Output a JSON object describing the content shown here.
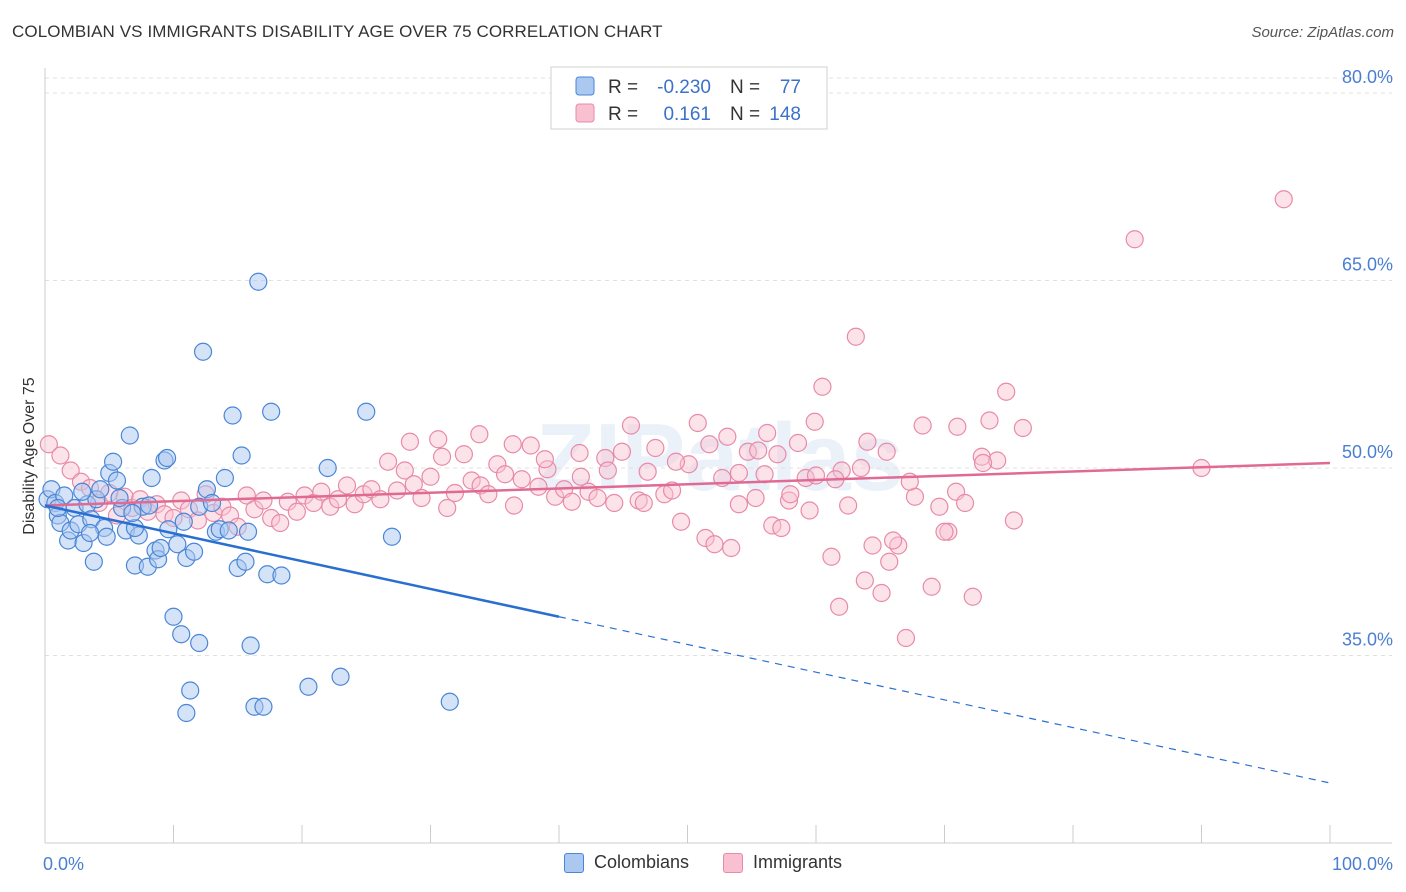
{
  "title": "COLOMBIAN VS IMMIGRANTS DISABILITY AGE OVER 75 CORRELATION CHART",
  "source": "Source: ZipAtlas.com",
  "watermark": "ZIPatlas",
  "colors": {
    "colombians_fill": "#aac8f0",
    "colombians_stroke": "#4a86d6",
    "colombians_line": "#2a6fd0",
    "immigrants_fill": "#f8c0d0",
    "immigrants_stroke": "#e88aa8",
    "immigrants_line": "#e06a94",
    "tick_label": "#4a7fd0",
    "grid": "#e0e0e0"
  },
  "legend_top": {
    "rows": [
      {
        "series": "Colombians",
        "r_label": "R =",
        "r_value": "-0.230",
        "n_label": "N =",
        "n_value": "77"
      },
      {
        "series": "Immigrants",
        "r_label": "R =",
        "r_value": "0.161",
        "n_label": "N =",
        "n_value": "148"
      }
    ]
  },
  "legend_bottom": [
    {
      "label": "Colombians"
    },
    {
      "label": "Immigrants"
    }
  ],
  "chart_data": {
    "type": "scatter",
    "title": "COLOMBIAN VS IMMIGRANTS DISABILITY AGE OVER 75 CORRELATION CHART",
    "xlabel": "",
    "ylabel": "Disability Age Over 75",
    "xlim": [
      0,
      100
    ],
    "ylim": [
      20,
      82
    ],
    "x_tick_labels": [
      "0.0%",
      "100.0%"
    ],
    "y_ticks": [
      35,
      50,
      65,
      80
    ],
    "y_tick_labels": [
      "35.0%",
      "50.0%",
      "65.0%",
      "80.0%"
    ],
    "grid": "horizontal dashed",
    "legend_placement": "top-center and bottom-center",
    "series": [
      {
        "name": "Colombians",
        "r": -0.23,
        "n": 77,
        "trend": {
          "x": [
            0,
            40
          ],
          "y": [
            47.0,
            38.1
          ],
          "dashed_extension": {
            "x": [
              40,
              100
            ],
            "y": [
              38.1,
              24.8
            ]
          }
        },
        "points": [
          [
            0.2,
            47.5
          ],
          [
            0.5,
            48.3
          ],
          [
            0.8,
            47.2
          ],
          [
            1.0,
            46.2
          ],
          [
            1.2,
            45.6
          ],
          [
            1.5,
            47.8
          ],
          [
            1.8,
            44.2
          ],
          [
            2.0,
            45.0
          ],
          [
            2.3,
            46.8
          ],
          [
            2.6,
            45.5
          ],
          [
            3.0,
            44.0
          ],
          [
            3.3,
            47.1
          ],
          [
            3.6,
            45.9
          ],
          [
            3.8,
            42.5
          ],
          [
            4.0,
            47.5
          ],
          [
            4.3,
            48.3
          ],
          [
            4.6,
            45.2
          ],
          [
            5.0,
            49.6
          ],
          [
            5.3,
            50.5
          ],
          [
            5.6,
            49.0
          ],
          [
            6.0,
            46.8
          ],
          [
            6.3,
            45.0
          ],
          [
            6.6,
            52.6
          ],
          [
            7.0,
            42.2
          ],
          [
            7.3,
            44.6
          ],
          [
            7.6,
            46.9
          ],
          [
            8.0,
            42.1
          ],
          [
            8.3,
            49.2
          ],
          [
            8.6,
            43.4
          ],
          [
            8.8,
            42.7
          ],
          [
            9.0,
            43.6
          ],
          [
            9.3,
            50.6
          ],
          [
            9.6,
            45.1
          ],
          [
            10.0,
            38.1
          ],
          [
            10.3,
            43.9
          ],
          [
            10.6,
            36.7
          ],
          [
            11.0,
            42.8
          ],
          [
            11.3,
            32.2
          ],
          [
            11.6,
            43.3
          ],
          [
            12.0,
            46.9
          ],
          [
            12.3,
            59.3
          ],
          [
            12.6,
            48.3
          ],
          [
            13.0,
            47.2
          ],
          [
            13.3,
            44.9
          ],
          [
            13.6,
            45.1
          ],
          [
            14.0,
            49.2
          ],
          [
            14.3,
            45.0
          ],
          [
            14.6,
            54.2
          ],
          [
            15.0,
            42.0
          ],
          [
            15.3,
            51.0
          ],
          [
            15.6,
            42.5
          ],
          [
            16.0,
            35.8
          ],
          [
            16.3,
            30.9
          ],
          [
            16.6,
            64.9
          ],
          [
            17.0,
            30.9
          ],
          [
            17.3,
            41.5
          ],
          [
            17.6,
            54.5
          ],
          [
            12.0,
            36.0
          ],
          [
            7.0,
            45.2
          ],
          [
            1.0,
            46.8
          ],
          [
            3.5,
            44.8
          ],
          [
            5.8,
            47.6
          ],
          [
            2.9,
            48.1
          ],
          [
            18.4,
            41.4
          ],
          [
            20.5,
            32.5
          ],
          [
            22.0,
            50.0
          ],
          [
            23.0,
            33.3
          ],
          [
            25.0,
            54.5
          ],
          [
            27.0,
            44.5
          ],
          [
            31.5,
            31.3
          ],
          [
            9.5,
            50.8
          ],
          [
            11.0,
            30.4
          ],
          [
            4.8,
            44.5
          ],
          [
            6.8,
            46.4
          ],
          [
            8.1,
            47.0
          ],
          [
            10.8,
            45.7
          ],
          [
            15.8,
            44.9
          ]
        ]
      },
      {
        "name": "Immigrants",
        "r": 0.161,
        "n": 148,
        "trend": {
          "x": [
            0,
            100
          ],
          "y": [
            47.0,
            50.4
          ]
        },
        "points": [
          [
            0.3,
            51.9
          ],
          [
            1.2,
            51.0
          ],
          [
            2.0,
            49.8
          ],
          [
            2.8,
            48.9
          ],
          [
            3.5,
            48.4
          ],
          [
            4.2,
            47.2
          ],
          [
            5.0,
            48.0
          ],
          [
            5.6,
            46.2
          ],
          [
            6.2,
            47.7
          ],
          [
            6.8,
            46.8
          ],
          [
            7.4,
            47.5
          ],
          [
            8.0,
            46.5
          ],
          [
            8.7,
            47.1
          ],
          [
            9.3,
            46.3
          ],
          [
            10.0,
            46.0
          ],
          [
            10.6,
            47.4
          ],
          [
            11.2,
            46.7
          ],
          [
            11.9,
            45.8
          ],
          [
            12.5,
            47.9
          ],
          [
            13.1,
            46.4
          ],
          [
            13.8,
            46.9
          ],
          [
            14.4,
            46.2
          ],
          [
            15.0,
            45.3
          ],
          [
            15.7,
            47.8
          ],
          [
            16.3,
            46.7
          ],
          [
            17.0,
            47.4
          ],
          [
            17.6,
            46.0
          ],
          [
            18.3,
            45.6
          ],
          [
            18.9,
            47.3
          ],
          [
            19.6,
            46.5
          ],
          [
            20.2,
            47.8
          ],
          [
            20.9,
            47.2
          ],
          [
            21.5,
            48.1
          ],
          [
            22.2,
            46.9
          ],
          [
            22.8,
            47.5
          ],
          [
            23.5,
            48.6
          ],
          [
            24.1,
            47.1
          ],
          [
            24.8,
            47.9
          ],
          [
            25.4,
            48.3
          ],
          [
            26.1,
            47.5
          ],
          [
            26.7,
            50.5
          ],
          [
            27.4,
            48.2
          ],
          [
            28.0,
            49.8
          ],
          [
            28.7,
            48.7
          ],
          [
            29.3,
            47.6
          ],
          [
            30.0,
            49.3
          ],
          [
            30.6,
            52.3
          ],
          [
            31.3,
            46.8
          ],
          [
            31.9,
            48.0
          ],
          [
            32.6,
            51.1
          ],
          [
            33.2,
            49.0
          ],
          [
            33.9,
            48.6
          ],
          [
            34.5,
            47.9
          ],
          [
            35.2,
            50.3
          ],
          [
            35.8,
            49.5
          ],
          [
            36.5,
            47.0
          ],
          [
            37.1,
            49.1
          ],
          [
            37.8,
            51.8
          ],
          [
            38.4,
            48.5
          ],
          [
            39.1,
            49.9
          ],
          [
            39.7,
            47.7
          ],
          [
            40.4,
            48.3
          ],
          [
            41.0,
            47.3
          ],
          [
            41.7,
            49.3
          ],
          [
            42.3,
            48.1
          ],
          [
            43.0,
            47.6
          ],
          [
            43.6,
            50.8
          ],
          [
            44.3,
            47.2
          ],
          [
            44.9,
            51.3
          ],
          [
            45.6,
            53.4
          ],
          [
            46.2,
            47.4
          ],
          [
            46.9,
            49.7
          ],
          [
            47.5,
            51.6
          ],
          [
            48.2,
            47.9
          ],
          [
            48.8,
            48.2
          ],
          [
            49.5,
            45.7
          ],
          [
            50.1,
            50.3
          ],
          [
            50.8,
            53.6
          ],
          [
            51.4,
            44.4
          ],
          [
            52.1,
            43.9
          ],
          [
            52.7,
            49.2
          ],
          [
            53.4,
            43.6
          ],
          [
            54.0,
            47.1
          ],
          [
            54.7,
            51.3
          ],
          [
            55.3,
            47.6
          ],
          [
            56.0,
            49.5
          ],
          [
            56.6,
            45.4
          ],
          [
            57.3,
            45.2
          ],
          [
            57.9,
            47.4
          ],
          [
            58.6,
            52.0
          ],
          [
            59.2,
            49.2
          ],
          [
            59.9,
            53.7
          ],
          [
            60.5,
            56.5
          ],
          [
            61.2,
            42.9
          ],
          [
            61.8,
            38.9
          ],
          [
            62.5,
            47.0
          ],
          [
            63.1,
            60.5
          ],
          [
            63.8,
            41.0
          ],
          [
            64.4,
            43.8
          ],
          [
            65.1,
            40.0
          ],
          [
            65.7,
            42.5
          ],
          [
            66.4,
            43.8
          ],
          [
            67.0,
            36.4
          ],
          [
            67.7,
            47.7
          ],
          [
            68.3,
            53.4
          ],
          [
            69.0,
            40.5
          ],
          [
            69.6,
            46.9
          ],
          [
            70.3,
            44.9
          ],
          [
            70.9,
            48.1
          ],
          [
            71.6,
            47.2
          ],
          [
            72.2,
            39.7
          ],
          [
            72.9,
            50.9
          ],
          [
            73.5,
            53.8
          ],
          [
            74.1,
            50.6
          ],
          [
            74.8,
            56.1
          ],
          [
            75.4,
            45.8
          ],
          [
            76.1,
            53.2
          ],
          [
            84.8,
            68.3
          ],
          [
            90.0,
            50.0
          ],
          [
            96.4,
            71.5
          ],
          [
            54.0,
            49.6
          ],
          [
            55.5,
            51.4
          ],
          [
            56.2,
            52.8
          ],
          [
            58.0,
            47.9
          ],
          [
            60.0,
            49.4
          ],
          [
            62.0,
            49.8
          ],
          [
            64.0,
            52.1
          ],
          [
            65.5,
            51.3
          ],
          [
            66.0,
            44.2
          ],
          [
            70.0,
            44.9
          ],
          [
            71.0,
            53.3
          ],
          [
            73.0,
            50.4
          ],
          [
            28.4,
            52.1
          ],
          [
            30.9,
            50.9
          ],
          [
            33.8,
            52.7
          ],
          [
            36.4,
            51.9
          ],
          [
            38.9,
            50.7
          ],
          [
            41.6,
            51.2
          ],
          [
            43.8,
            49.8
          ],
          [
            46.6,
            47.2
          ],
          [
            49.1,
            50.5
          ],
          [
            51.7,
            51.9
          ],
          [
            53.1,
            52.5
          ],
          [
            57.0,
            51.1
          ],
          [
            59.5,
            46.6
          ],
          [
            61.5,
            49.1
          ],
          [
            63.5,
            50.0
          ],
          [
            67.3,
            48.9
          ]
        ]
      }
    ]
  }
}
